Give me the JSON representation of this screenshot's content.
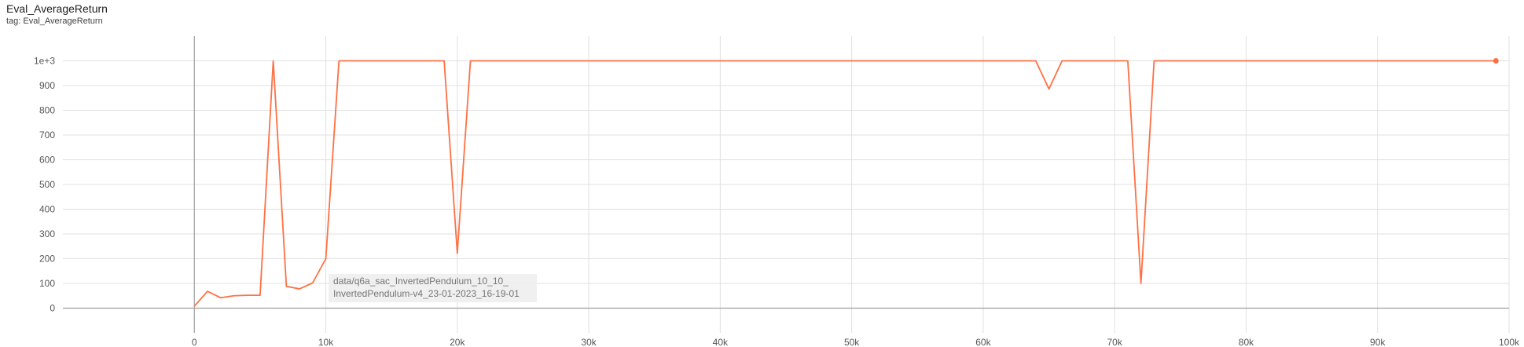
{
  "header": {
    "title": "Eval_AverageReturn",
    "tag": "tag: Eval_AverageReturn"
  },
  "colors": {
    "series": "#ff7043",
    "grid": "#e0e0e0",
    "axis": "#9e9e9e",
    "tooltip_bg": "#eeeeee"
  },
  "chart_data": {
    "type": "line",
    "title": "Eval_AverageReturn",
    "xlabel": "",
    "ylabel": "",
    "xlim": [
      -10000,
      100000
    ],
    "ylim": [
      -100,
      1100
    ],
    "grid": true,
    "x_ticks": [
      0,
      10000,
      20000,
      30000,
      40000,
      50000,
      60000,
      70000,
      80000,
      90000,
      100000
    ],
    "x_tick_labels": [
      "0",
      "10k",
      "20k",
      "30k",
      "40k",
      "50k",
      "60k",
      "70k",
      "80k",
      "90k",
      "100k"
    ],
    "y_ticks": [
      0,
      100,
      200,
      300,
      400,
      500,
      600,
      700,
      800,
      900,
      1000
    ],
    "y_tick_labels": [
      "0",
      "100",
      "200",
      "300",
      "400",
      "500",
      "600",
      "700",
      "800",
      "900",
      "1e+3"
    ],
    "series": [
      {
        "name": "data/q6a_sac_InvertedPendulum_10_10_InvertedPendulum-v4_23-01-2023_16-19-01",
        "label_lines": [
          "data/q6a_sac_InvertedPendulum_10_10_",
          "InvertedPendulum-v4_23-01-2023_16-19-01"
        ],
        "x": [
          0,
          1000,
          2000,
          3000,
          4000,
          5000,
          6000,
          7000,
          8000,
          9000,
          10000,
          11000,
          12000,
          13000,
          14000,
          15000,
          16000,
          17000,
          18000,
          19000,
          20000,
          21000,
          22000,
          23000,
          24000,
          25000,
          26000,
          27000,
          28000,
          29000,
          30000,
          31000,
          32000,
          33000,
          34000,
          35000,
          36000,
          37000,
          38000,
          39000,
          40000,
          41000,
          42000,
          43000,
          44000,
          45000,
          46000,
          47000,
          48000,
          49000,
          50000,
          51000,
          52000,
          53000,
          54000,
          55000,
          56000,
          57000,
          58000,
          59000,
          60000,
          61000,
          62000,
          63000,
          64000,
          65000,
          66000,
          67000,
          68000,
          69000,
          70000,
          71000,
          72000,
          73000,
          74000,
          75000,
          76000,
          77000,
          78000,
          79000,
          80000,
          81000,
          82000,
          83000,
          84000,
          85000,
          86000,
          87000,
          88000,
          89000,
          90000,
          91000,
          92000,
          93000,
          94000,
          95000,
          96000,
          97000,
          98000,
          99000
        ],
        "values": [
          8,
          68,
          42,
          50,
          52,
          52,
          1000,
          88,
          78,
          102,
          200,
          1000,
          1000,
          1000,
          1000,
          1000,
          1000,
          1000,
          1000,
          1000,
          222,
          1000,
          1000,
          1000,
          1000,
          1000,
          1000,
          1000,
          1000,
          1000,
          1000,
          1000,
          1000,
          1000,
          1000,
          1000,
          1000,
          1000,
          1000,
          1000,
          1000,
          1000,
          1000,
          1000,
          1000,
          1000,
          1000,
          1000,
          1000,
          1000,
          1000,
          1000,
          1000,
          1000,
          1000,
          1000,
          1000,
          1000,
          1000,
          1000,
          1000,
          1000,
          1000,
          1000,
          1000,
          886,
          1000,
          1000,
          1000,
          1000,
          1000,
          1000,
          100,
          1000,
          1000,
          1000,
          1000,
          1000,
          1000,
          1000,
          1000,
          1000,
          1000,
          1000,
          1000,
          1000,
          1000,
          1000,
          1000,
          1000,
          1000,
          1000,
          1000,
          1000,
          1000,
          1000,
          1000,
          1000,
          1000,
          1000
        ]
      }
    ]
  }
}
